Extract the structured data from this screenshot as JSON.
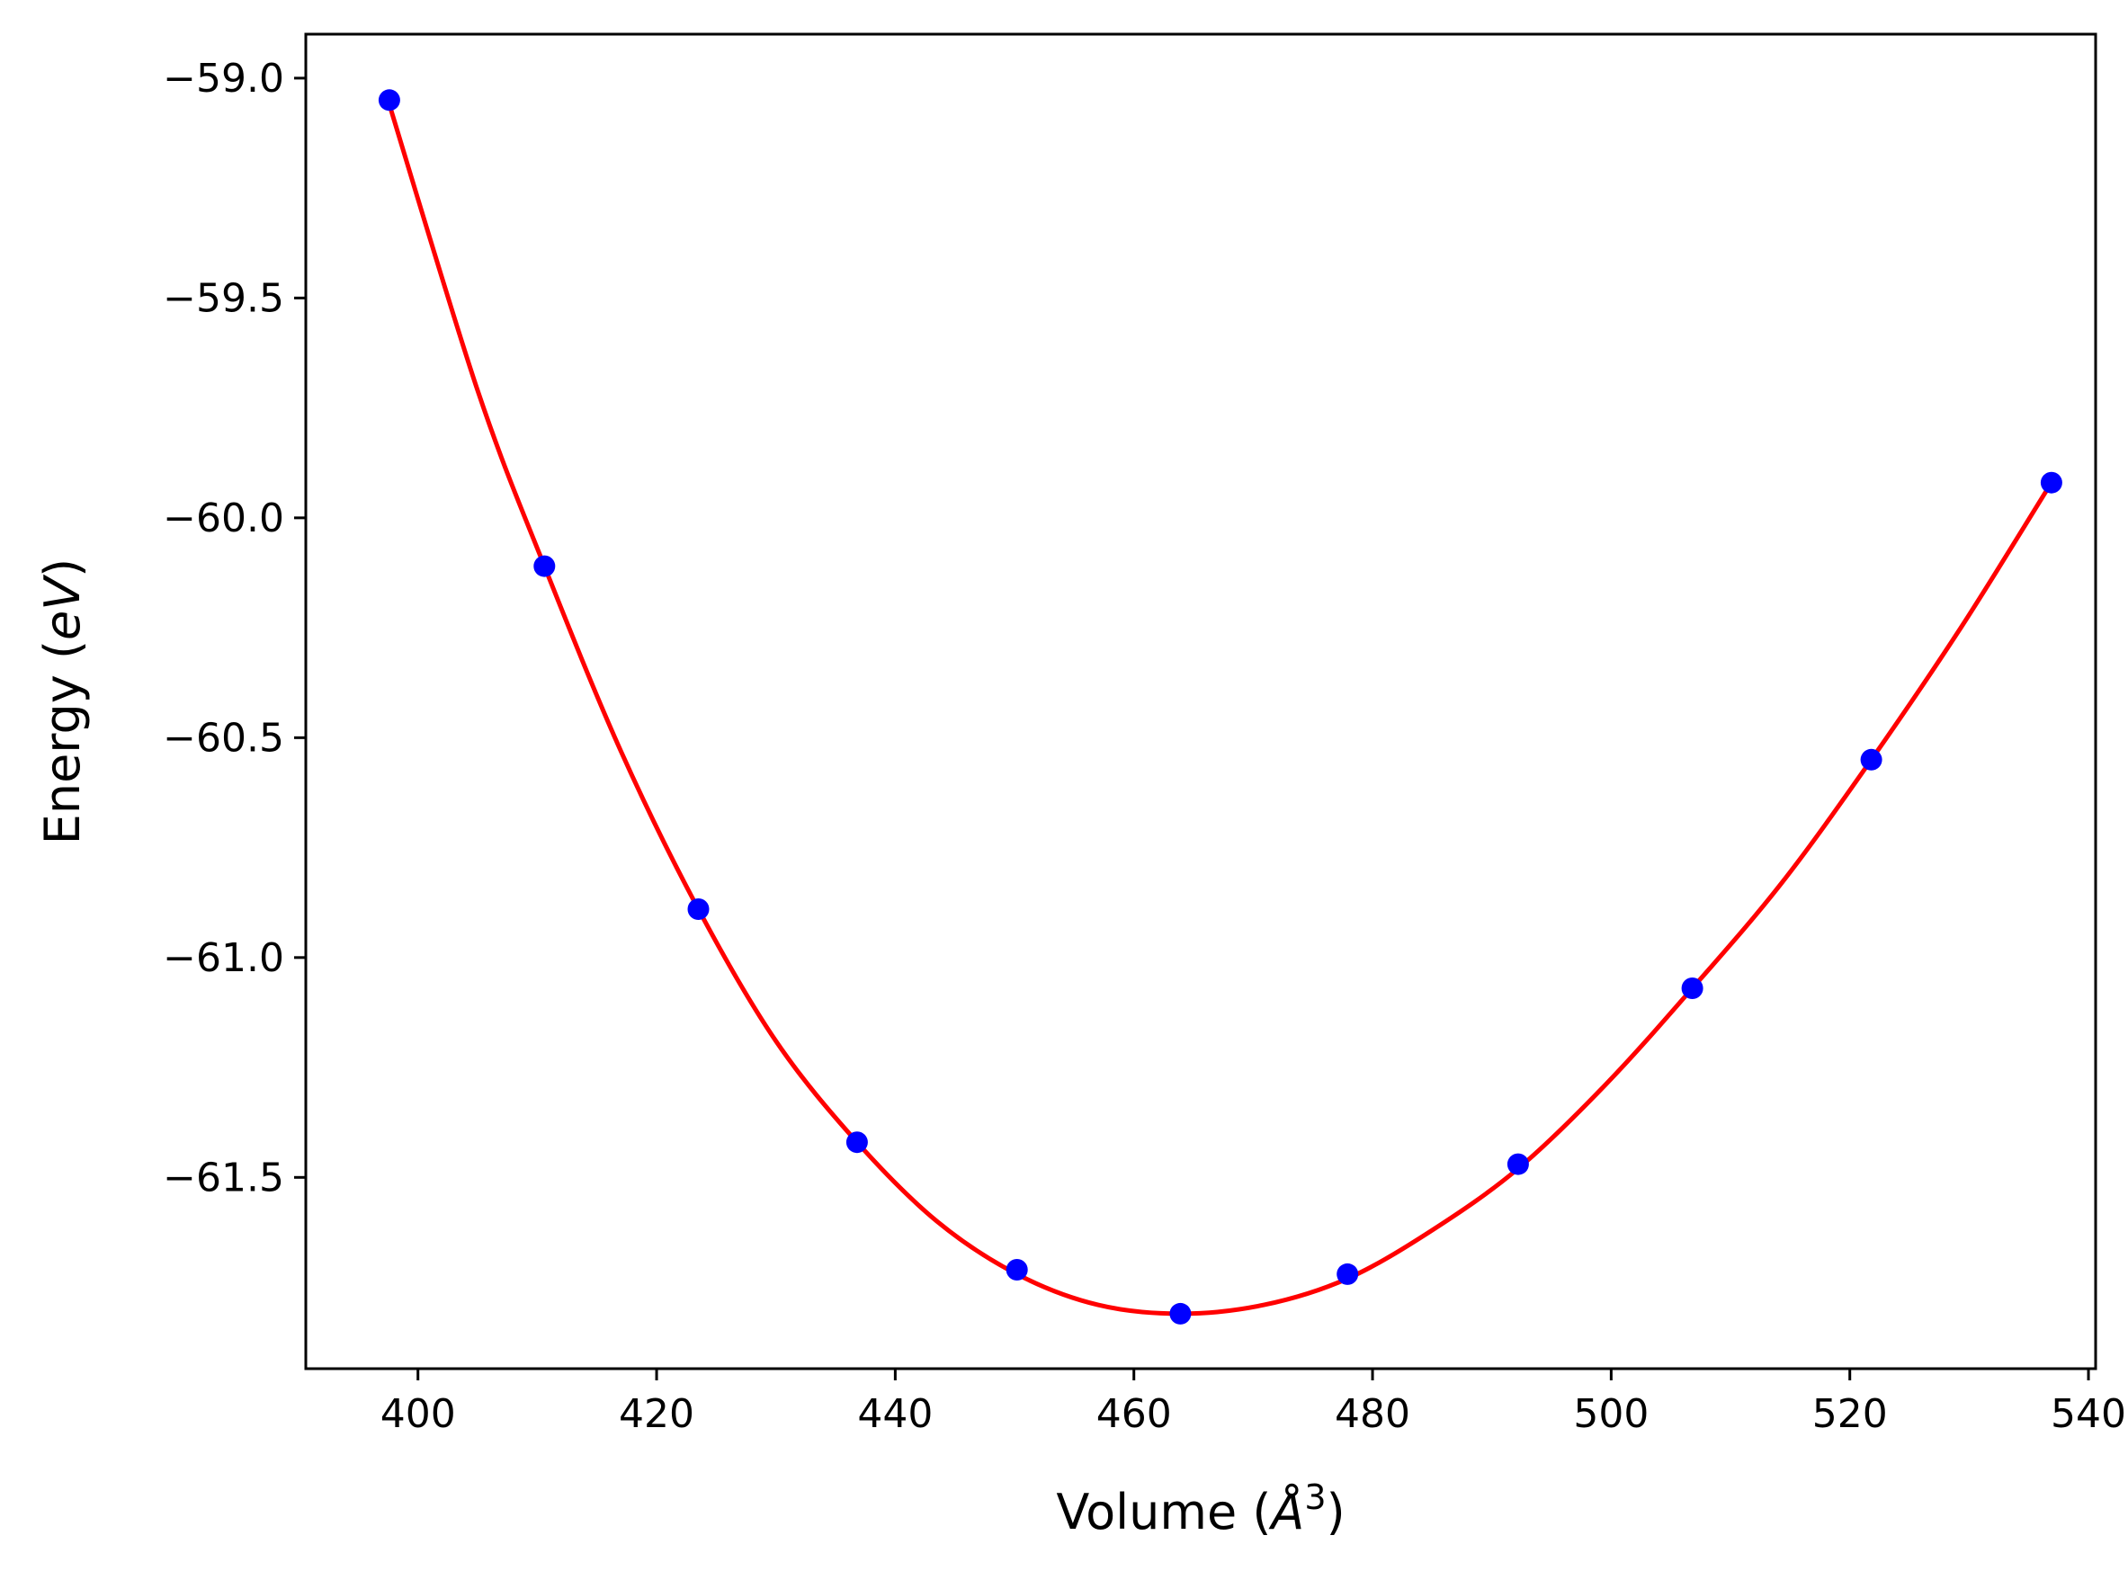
{
  "chart_data": {
    "type": "scatter",
    "title": "",
    "xlabel": {
      "main": "Volume (",
      "symbol": "Å",
      "sup": "3",
      "close": ")"
    },
    "ylabel": {
      "main": "Energy (",
      "symbol": "eV",
      "close": ")"
    },
    "xlim": [
      390.6,
      540.6
    ],
    "ylim": [
      -61.935,
      -58.9
    ],
    "xticks": [
      400,
      420,
      440,
      460,
      480,
      500,
      520,
      540
    ],
    "xtick_labels": [
      "400",
      "420",
      "440",
      "460",
      "480",
      "500",
      "520",
      "540"
    ],
    "yticks": [
      -59.0,
      -59.5,
      -60.0,
      -60.5,
      -61.0,
      -61.5
    ],
    "ytick_labels": [
      "−59.0",
      "−59.5",
      "−60.0",
      "−60.5",
      "−61.0",
      "−61.5"
    ],
    "grid": false,
    "series": [
      {
        "kind": "points",
        "color": "#0000ff",
        "x": [
          397.6,
          410.6,
          423.5,
          436.8,
          450.2,
          463.9,
          477.9,
          492.2,
          506.8,
          521.8,
          536.9
        ],
        "y": [
          -59.05,
          -60.11,
          -60.89,
          -61.42,
          -61.71,
          -61.81,
          -61.72,
          -61.47,
          -61.07,
          -60.55,
          -59.92
        ]
      },
      {
        "kind": "fit-line",
        "color": "#ff0000",
        "x": [
          397.6,
          405,
          410.6,
          417,
          423.5,
          430,
          436.8,
          443.5,
          450.2,
          457,
          463.9,
          470.9,
          477.9,
          485,
          492.2,
          499.5,
          506.8,
          514.3,
          521.8,
          529.3,
          536.9
        ],
        "y": [
          -59.06,
          -59.71,
          -60.11,
          -60.53,
          -60.89,
          -61.19,
          -61.42,
          -61.6,
          -61.72,
          -61.79,
          -61.81,
          -61.79,
          -61.73,
          -61.62,
          -61.48,
          -61.29,
          -61.07,
          -60.83,
          -60.55,
          -60.25,
          -59.92
        ]
      }
    ]
  }
}
